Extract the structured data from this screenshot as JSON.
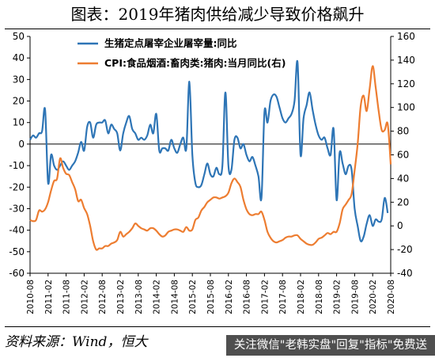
{
  "figure": {
    "title": "图表：2019年猪肉供给减少导致价格飙升",
    "source": "资料来源：Wind，恒大",
    "watermark": "关注微信\"老韩实盘\"回复\"指标\"免费送"
  },
  "chart_data": {
    "type": "line",
    "title": "图表：2019年猪肉供给减少导致价格飙升",
    "legend_position": "top-left",
    "grid": false,
    "y_left": {
      "lim": [
        -60,
        50
      ],
      "ticks": [
        50,
        40,
        30,
        20,
        10,
        0,
        -10,
        -20,
        -30,
        -40,
        -50,
        -60
      ]
    },
    "y_right": {
      "lim": [
        -40,
        160
      ],
      "ticks": [
        160,
        140,
        120,
        100,
        80,
        60,
        40,
        20,
        0,
        -20,
        -40
      ]
    },
    "x_ticks": [
      "2010-08",
      "2011-02",
      "2011-08",
      "2012-02",
      "2012-08",
      "2013-02",
      "2013-08",
      "2014-02",
      "2014-08",
      "2015-02",
      "2015-08",
      "2016-02",
      "2016-08",
      "2017-02",
      "2017-08",
      "2018-02",
      "2018-08",
      "2019-02",
      "2019-08",
      "2020-02",
      "2020-08"
    ],
    "series": [
      {
        "name": "生猪定点屠宰企业屠宰量:同比",
        "axis": "left",
        "color": "#2e75b6",
        "points": [
          [
            "2010-08",
            2
          ],
          [
            "2010-09",
            4
          ],
          [
            "2010-10",
            3
          ],
          [
            "2010-11",
            5
          ],
          [
            "2010-12",
            6
          ],
          [
            "2011-01",
            16
          ],
          [
            "2011-02",
            -18
          ],
          [
            "2011-03",
            -5
          ],
          [
            "2011-04",
            -10
          ],
          [
            "2011-05",
            -12
          ],
          [
            "2011-06",
            -10
          ],
          [
            "2011-07",
            -8
          ],
          [
            "2011-08",
            -10
          ],
          [
            "2011-09",
            -12
          ],
          [
            "2011-10",
            -10
          ],
          [
            "2011-11",
            -8
          ],
          [
            "2011-12",
            -4
          ],
          [
            "2012-01",
            1
          ],
          [
            "2012-02",
            -3
          ],
          [
            "2012-03",
            8
          ],
          [
            "2012-04",
            10
          ],
          [
            "2012-05",
            3
          ],
          [
            "2012-06",
            9
          ],
          [
            "2012-07",
            10
          ],
          [
            "2012-08",
            10
          ],
          [
            "2012-09",
            11
          ],
          [
            "2012-10",
            5
          ],
          [
            "2012-11",
            9
          ],
          [
            "2012-12",
            7
          ],
          [
            "2013-01",
            5
          ],
          [
            "2013-02",
            -3
          ],
          [
            "2013-03",
            5
          ],
          [
            "2013-04",
            10
          ],
          [
            "2013-05",
            13
          ],
          [
            "2013-06",
            7
          ],
          [
            "2013-07",
            5
          ],
          [
            "2013-08",
            2
          ],
          [
            "2013-09",
            3
          ],
          [
            "2013-10",
            2
          ],
          [
            "2013-11",
            4
          ],
          [
            "2013-12",
            9
          ],
          [
            "2014-01",
            5
          ],
          [
            "2014-02",
            14
          ],
          [
            "2014-03",
            -3
          ],
          [
            "2014-04",
            -2
          ],
          [
            "2014-05",
            -2
          ],
          [
            "2014-06",
            -3
          ],
          [
            "2014-07",
            2
          ],
          [
            "2014-08",
            -2
          ],
          [
            "2014-09",
            -4
          ],
          [
            "2014-10",
            0
          ],
          [
            "2014-11",
            3
          ],
          [
            "2014-12",
            -2
          ],
          [
            "2015-01",
            29
          ],
          [
            "2015-02",
            -5
          ],
          [
            "2015-03",
            -18
          ],
          [
            "2015-04",
            -20
          ],
          [
            "2015-05",
            -19
          ],
          [
            "2015-06",
            -14
          ],
          [
            "2015-07",
            -9
          ],
          [
            "2015-08",
            -14
          ],
          [
            "2015-09",
            -15
          ],
          [
            "2015-10",
            -11
          ],
          [
            "2015-11",
            -14
          ],
          [
            "2015-12",
            -10
          ],
          [
            "2016-01",
            24
          ],
          [
            "2016-02",
            -10
          ],
          [
            "2016-03",
            -12
          ],
          [
            "2016-04",
            2
          ],
          [
            "2016-05",
            3
          ],
          [
            "2016-06",
            -2
          ],
          [
            "2016-07",
            0
          ],
          [
            "2016-08",
            -5
          ],
          [
            "2016-09",
            -8
          ],
          [
            "2016-10",
            -6
          ],
          [
            "2016-11",
            -10
          ],
          [
            "2016-12",
            -15
          ],
          [
            "2017-01",
            -25
          ],
          [
            "2017-02",
            15
          ],
          [
            "2017-03",
            10
          ],
          [
            "2017-04",
            20
          ],
          [
            "2017-05",
            23
          ],
          [
            "2017-06",
            22
          ],
          [
            "2017-07",
            17
          ],
          [
            "2017-08",
            12
          ],
          [
            "2017-09",
            10
          ],
          [
            "2017-10",
            12
          ],
          [
            "2017-11",
            14
          ],
          [
            "2017-12",
            20
          ],
          [
            "2018-01",
            38
          ],
          [
            "2018-02",
            -5
          ],
          [
            "2018-03",
            12
          ],
          [
            "2018-04",
            18
          ],
          [
            "2018-05",
            24
          ],
          [
            "2018-06",
            16
          ],
          [
            "2018-07",
            9
          ],
          [
            "2018-08",
            4
          ],
          [
            "2018-09",
            2
          ],
          [
            "2018-10",
            3
          ],
          [
            "2018-11",
            -2
          ],
          [
            "2018-12",
            -5
          ],
          [
            "2019-01",
            7
          ],
          [
            "2019-02",
            -26
          ],
          [
            "2019-03",
            -4
          ],
          [
            "2019-04",
            -9
          ],
          [
            "2019-05",
            -14
          ],
          [
            "2019-06",
            -10
          ],
          [
            "2019-07",
            -12
          ],
          [
            "2019-08",
            -30
          ],
          [
            "2019-09",
            -38
          ],
          [
            "2019-10",
            -45
          ],
          [
            "2019-11",
            -43
          ],
          [
            "2019-12",
            -37
          ],
          [
            "2020-01",
            -33
          ],
          [
            "2020-02",
            -38
          ],
          [
            "2020-03",
            -35
          ],
          [
            "2020-04",
            -36
          ],
          [
            "2020-05",
            -35
          ],
          [
            "2020-06",
            -25
          ],
          [
            "2020-07",
            -32
          ]
        ]
      },
      {
        "name": "CPI:食品烟酒:畜肉类:猪肉:当月同比(右)",
        "axis": "right",
        "color": "#ed7d31",
        "points": [
          [
            "2010-08",
            5
          ],
          [
            "2010-09",
            4
          ],
          [
            "2010-10",
            5
          ],
          [
            "2010-11",
            13
          ],
          [
            "2010-12",
            12
          ],
          [
            "2011-01",
            14
          ],
          [
            "2011-02",
            20
          ],
          [
            "2011-03",
            30
          ],
          [
            "2011-04",
            38
          ],
          [
            "2011-05",
            40
          ],
          [
            "2011-06",
            57
          ],
          [
            "2011-07",
            49
          ],
          [
            "2011-08",
            44
          ],
          [
            "2011-09",
            43
          ],
          [
            "2011-10",
            37
          ],
          [
            "2011-11",
            31
          ],
          [
            "2011-12",
            21
          ],
          [
            "2012-01",
            22
          ],
          [
            "2012-02",
            15
          ],
          [
            "2012-03",
            10
          ],
          [
            "2012-04",
            0
          ],
          [
            "2012-05",
            -13
          ],
          [
            "2012-06",
            -20
          ],
          [
            "2012-07",
            -19
          ],
          [
            "2012-08",
            -19
          ],
          [
            "2012-09",
            -17
          ],
          [
            "2012-10",
            -17
          ],
          [
            "2012-11",
            -15
          ],
          [
            "2012-12",
            -14
          ],
          [
            "2013-01",
            -12
          ],
          [
            "2013-02",
            -5
          ],
          [
            "2013-03",
            -9
          ],
          [
            "2013-04",
            -7
          ],
          [
            "2013-05",
            -5
          ],
          [
            "2013-06",
            -2
          ],
          [
            "2013-07",
            2
          ],
          [
            "2013-08",
            0
          ],
          [
            "2013-09",
            -2
          ],
          [
            "2013-10",
            -3
          ],
          [
            "2013-11",
            -4
          ],
          [
            "2013-12",
            -2
          ],
          [
            "2014-01",
            -2
          ],
          [
            "2014-02",
            -4
          ],
          [
            "2014-03",
            -7
          ],
          [
            "2014-04",
            -9
          ],
          [
            "2014-05",
            -8
          ],
          [
            "2014-06",
            -5
          ],
          [
            "2014-07",
            -4
          ],
          [
            "2014-08",
            -3
          ],
          [
            "2014-09",
            -3
          ],
          [
            "2014-10",
            -4
          ],
          [
            "2014-11",
            -5
          ],
          [
            "2014-12",
            -1
          ],
          [
            "2015-01",
            -4
          ],
          [
            "2015-02",
            -3
          ],
          [
            "2015-03",
            5
          ],
          [
            "2015-04",
            7
          ],
          [
            "2015-05",
            13
          ],
          [
            "2015-06",
            16
          ],
          [
            "2015-07",
            20
          ],
          [
            "2015-08",
            22
          ],
          [
            "2015-09",
            24
          ],
          [
            "2015-10",
            24
          ],
          [
            "2015-11",
            23
          ],
          [
            "2015-12",
            24
          ],
          [
            "2016-01",
            25
          ],
          [
            "2016-02",
            28
          ],
          [
            "2016-03",
            36
          ],
          [
            "2016-04",
            40
          ],
          [
            "2016-05",
            37
          ],
          [
            "2016-06",
            33
          ],
          [
            "2016-07",
            22
          ],
          [
            "2016-08",
            14
          ],
          [
            "2016-09",
            10
          ],
          [
            "2016-10",
            9
          ],
          [
            "2016-11",
            10
          ],
          [
            "2016-12",
            10
          ],
          [
            "2017-01",
            12
          ],
          [
            "2017-02",
            5
          ],
          [
            "2017-03",
            -5
          ],
          [
            "2017-04",
            -10
          ],
          [
            "2017-05",
            -13
          ],
          [
            "2017-06",
            -14
          ],
          [
            "2017-07",
            -13
          ],
          [
            "2017-08",
            -12
          ],
          [
            "2017-09",
            -10
          ],
          [
            "2017-10",
            -9
          ],
          [
            "2017-11",
            -9
          ],
          [
            "2017-12",
            -8
          ],
          [
            "2018-01",
            -8
          ],
          [
            "2018-02",
            -11
          ],
          [
            "2018-03",
            -13
          ],
          [
            "2018-04",
            -15
          ],
          [
            "2018-05",
            -16
          ],
          [
            "2018-06",
            -16
          ],
          [
            "2018-07",
            -14
          ],
          [
            "2018-08",
            -11
          ],
          [
            "2018-09",
            -10
          ],
          [
            "2018-10",
            -8
          ],
          [
            "2018-11",
            -6
          ],
          [
            "2018-12",
            -7
          ],
          [
            "2019-01",
            -5
          ],
          [
            "2019-02",
            -5
          ],
          [
            "2019-03",
            2
          ],
          [
            "2019-04",
            14
          ],
          [
            "2019-05",
            18
          ],
          [
            "2019-06",
            22
          ],
          [
            "2019-07",
            27
          ],
          [
            "2019-08",
            47
          ],
          [
            "2019-09",
            69
          ],
          [
            "2019-10",
            101
          ],
          [
            "2019-11",
            110
          ],
          [
            "2019-12",
            97
          ],
          [
            "2020-01",
            116
          ],
          [
            "2020-02",
            135
          ],
          [
            "2020-03",
            117
          ],
          [
            "2020-04",
            97
          ],
          [
            "2020-05",
            81
          ],
          [
            "2020-06",
            81
          ],
          [
            "2020-07",
            86
          ],
          [
            "2020-08",
            52
          ]
        ]
      }
    ]
  }
}
